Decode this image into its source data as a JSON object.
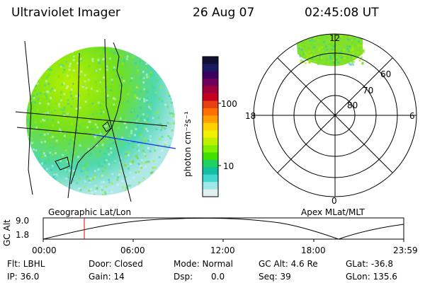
{
  "header": {
    "instrument": "Ultraviolet Imager",
    "date": "26 Aug 07",
    "time": "02:45:08 UT"
  },
  "colorbar": {
    "unit_label": "photon cm⁻²s⁻¹",
    "ticks": [
      "100",
      "10"
    ],
    "colors": [
      "#101030",
      "#1a1a60",
      "#3b0060",
      "#70005a",
      "#a0003a",
      "#c80020",
      "#e84010",
      "#ff7000",
      "#ffa000",
      "#ffd000",
      "#f0f000",
      "#c0f000",
      "#80f000",
      "#40e000",
      "#20d060",
      "#10c0a0",
      "#40d8d0",
      "#a0e8e8",
      "#e0f0f0"
    ]
  },
  "polar": {
    "mlt_labels": {
      "top": "12",
      "left": "18",
      "right": "6",
      "bottom": "0"
    },
    "lat_labels": [
      "60",
      "70",
      "80"
    ]
  },
  "projection_labels": {
    "left": "Geographic Lat/Lon",
    "right": "Apex MLat/MLT"
  },
  "altitude_plot": {
    "ylabel": "GC Alt",
    "yticks": [
      "9.0",
      "1.8"
    ],
    "xticks": [
      "00:00",
      "06:00",
      "12:00",
      "18:00",
      "23:59"
    ],
    "marker_time": "02:45"
  },
  "info": {
    "filter": "Flt: LBHL",
    "door": "Door: Closed",
    "mode": "Mode: Normal",
    "gc_alt": "GC Alt: 4.6 Re",
    "glat": "GLat: -36.8",
    "ip": "IP: 36.0",
    "gain": "Gain: 14",
    "dsp_label": "Dsp:",
    "dsp_value": "0.0",
    "seq": "Seq: 39",
    "glon": "GLon: 135.6"
  }
}
